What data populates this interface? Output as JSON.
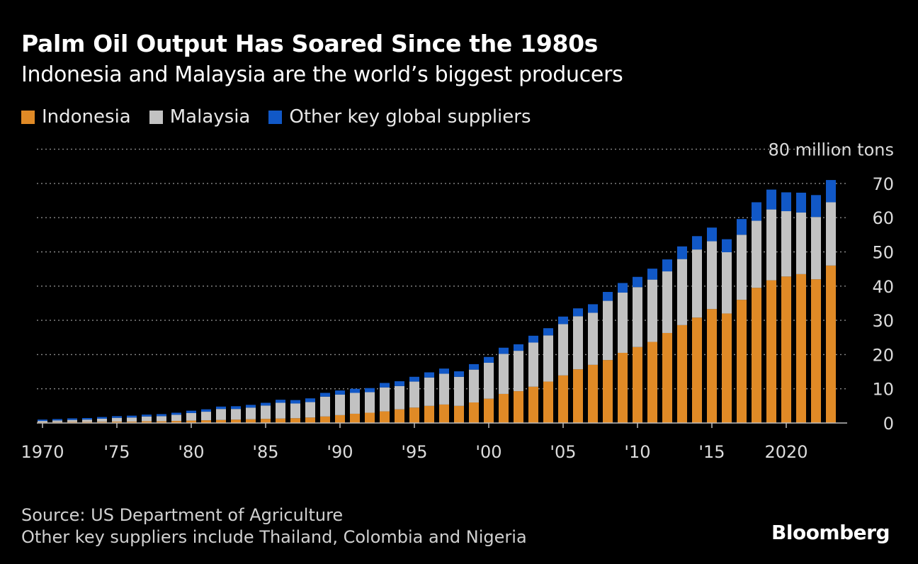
{
  "title": "Palm Oil Output Has Soared Since the 1980s",
  "subtitle": "Indonesia and Malaysia are the world’s biggest producers",
  "legend": [
    {
      "label": "Indonesia",
      "color": "#e08a26"
    },
    {
      "label": "Malaysia",
      "color": "#c2c2c2"
    },
    {
      "label": "Other key global suppliers",
      "color": "#1158c7"
    }
  ],
  "footer": {
    "source": "Source: US Department of Agriculture",
    "note": "Other key suppliers include Thailand, Colombia and Nigeria"
  },
  "logo": "Bloomberg",
  "chart_data": {
    "type": "bar",
    "stacked": true,
    "x": [
      1970,
      1971,
      1972,
      1973,
      1974,
      1975,
      1976,
      1977,
      1978,
      1979,
      1980,
      1981,
      1982,
      1983,
      1984,
      1985,
      1986,
      1987,
      1988,
      1989,
      1990,
      1991,
      1992,
      1993,
      1994,
      1995,
      1996,
      1997,
      1998,
      1999,
      2000,
      2001,
      2002,
      2003,
      2004,
      2005,
      2006,
      2007,
      2008,
      2009,
      2010,
      2011,
      2012,
      2013,
      2014,
      2015,
      2016,
      2017,
      2018,
      2019,
      2020,
      2021,
      2022,
      2023
    ],
    "x_tick_values": [
      1970,
      1975,
      1980,
      1985,
      1990,
      1995,
      2000,
      2005,
      2010,
      2015,
      2020
    ],
    "x_tick_labels": [
      "1970",
      "'75",
      "'80",
      "'85",
      "'90",
      "'95",
      "'00",
      "'05",
      "'10",
      "'15",
      "2020"
    ],
    "series": [
      {
        "name": "Indonesia",
        "color": "#e08a26",
        "values": [
          0.2,
          0.25,
          0.3,
          0.3,
          0.35,
          0.4,
          0.4,
          0.5,
          0.5,
          0.6,
          0.7,
          0.8,
          0.9,
          1.0,
          1.1,
          1.2,
          1.3,
          1.4,
          1.6,
          1.9,
          2.3,
          2.7,
          3.0,
          3.4,
          4.0,
          4.5,
          5.0,
          5.4,
          5.0,
          6.0,
          7.1,
          8.5,
          9.3,
          10.6,
          12.1,
          13.9,
          15.7,
          17.0,
          18.4,
          20.5,
          22.2,
          23.7,
          26.3,
          28.6,
          30.8,
          33.3,
          32.0,
          36.0,
          39.5,
          41.7,
          42.8,
          43.5,
          42.0,
          46.0
        ]
      },
      {
        "name": "Malaysia",
        "color": "#c2c2c2",
        "values": [
          0.4,
          0.5,
          0.6,
          0.7,
          0.9,
          1.1,
          1.2,
          1.4,
          1.5,
          1.8,
          2.2,
          2.5,
          3.2,
          3.1,
          3.4,
          3.9,
          4.6,
          4.3,
          4.5,
          5.8,
          6.0,
          6.1,
          6.0,
          7.0,
          6.8,
          7.6,
          8.3,
          9.0,
          8.5,
          9.6,
          10.5,
          11.7,
          11.8,
          12.9,
          13.5,
          15.0,
          15.5,
          15.2,
          17.3,
          17.6,
          17.5,
          18.2,
          18.0,
          19.3,
          19.9,
          19.8,
          17.9,
          19.0,
          19.6,
          20.7,
          19.1,
          18.0,
          18.2,
          18.5
        ]
      },
      {
        "name": "Other key global suppliers",
        "color": "#1158c7",
        "values": [
          0.4,
          0.4,
          0.45,
          0.45,
          0.5,
          0.5,
          0.55,
          0.55,
          0.6,
          0.6,
          0.7,
          0.7,
          0.7,
          0.8,
          0.8,
          0.8,
          0.9,
          1.0,
          1.1,
          1.1,
          1.2,
          1.2,
          1.2,
          1.3,
          1.4,
          1.4,
          1.5,
          1.5,
          1.6,
          1.6,
          1.7,
          1.8,
          1.9,
          2.0,
          2.1,
          2.2,
          2.3,
          2.5,
          2.6,
          2.8,
          3.0,
          3.2,
          3.5,
          3.7,
          3.9,
          4.0,
          3.8,
          4.6,
          5.4,
          5.8,
          5.5,
          5.8,
          6.4,
          6.5
        ]
      }
    ],
    "y_axis": {
      "ticks": [
        0,
        10,
        20,
        30,
        40,
        50,
        60,
        70,
        80
      ],
      "top_label": "80 million tons",
      "unit": "million tons",
      "range": [
        0,
        80
      ],
      "position": "right"
    },
    "grid": "horizontal dotted"
  }
}
